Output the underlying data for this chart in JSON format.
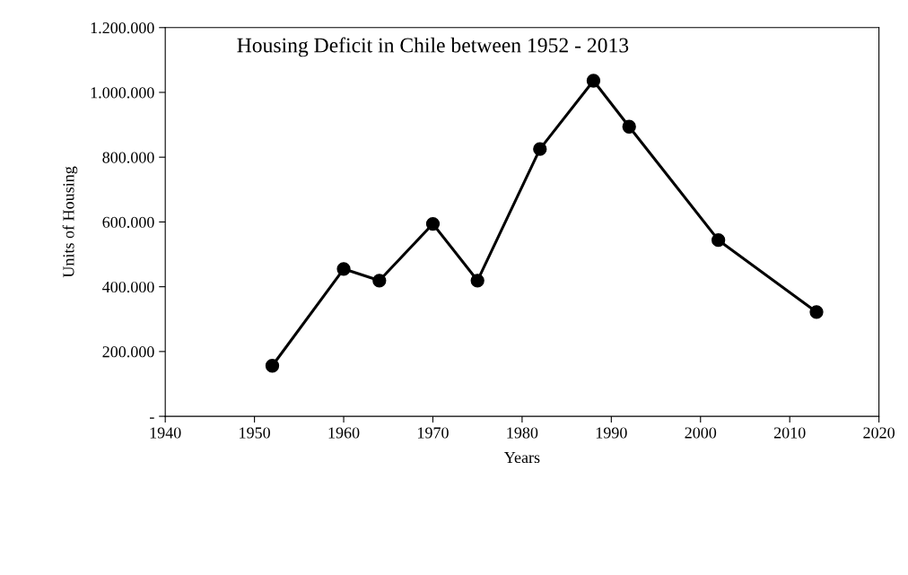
{
  "chart_data": {
    "type": "line",
    "title": "Housing Deficit in Chile between 1952 - 2013",
    "xlabel": "Years",
    "ylabel": "Units of Housing",
    "x": [
      1952,
      1960,
      1964,
      1970,
      1975,
      1982,
      1988,
      1992,
      2002,
      2013
    ],
    "series": [
      {
        "color": "#000000",
        "values": [
          156000,
          455000,
          419000,
          594000,
          419000,
          825000,
          1036000,
          894000,
          544000,
          322000
        ]
      }
    ],
    "xlim": [
      1940,
      2020
    ],
    "xticks": [
      1940,
      1950,
      1960,
      1970,
      1980,
      1990,
      2000,
      2010,
      2020
    ],
    "ylim": [
      0,
      1200000
    ],
    "yticks": [
      {
        "value": 0,
        "label": "-"
      },
      {
        "value": 200000,
        "label": "200.000"
      },
      {
        "value": 400000,
        "label": "400.000"
      },
      {
        "value": 600000,
        "label": "600.000"
      },
      {
        "value": 800000,
        "label": "800.000"
      },
      {
        "value": 1000000,
        "label": "1.000.000"
      },
      {
        "value": 1200000,
        "label": "1.200.000"
      }
    ],
    "marker": "circle",
    "line_style": "solid",
    "grid": false,
    "legend": false
  }
}
